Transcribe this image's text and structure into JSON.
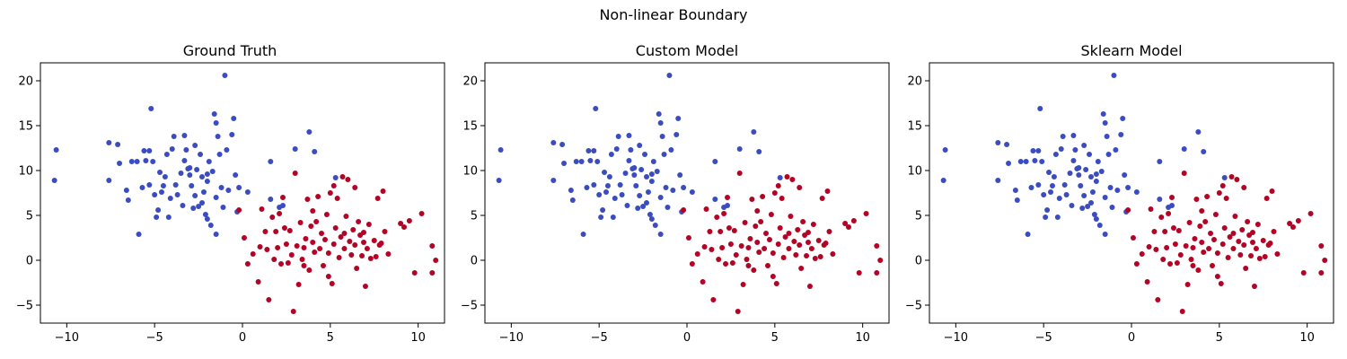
{
  "suptitle": "Non-linear Boundary",
  "colors": {
    "class_0": "#3b4cc0",
    "class_1": "#b40426"
  },
  "chart_data": [
    {
      "type": "scatter",
      "title": "Ground Truth",
      "xlim": [
        -11.5,
        11.5
      ],
      "ylim": [
        -7,
        22
      ],
      "xticks": [
        -10,
        -5,
        0,
        5,
        10
      ],
      "yticks": [
        -5,
        0,
        5,
        10,
        15,
        20
      ],
      "xlabel": "",
      "ylabel": "",
      "series": [
        {
          "class": 0,
          "points": [
            [
              -10.6,
              12.3
            ],
            [
              -10.7,
              8.9
            ],
            [
              -7.6,
              13.1
            ],
            [
              -7.6,
              8.9
            ],
            [
              -7.1,
              12.9
            ],
            [
              -7.0,
              10.8
            ],
            [
              -6.6,
              7.8
            ],
            [
              -6.5,
              6.7
            ],
            [
              -6.3,
              11.0
            ],
            [
              -6.0,
              11.0
            ],
            [
              -5.9,
              2.9
            ],
            [
              -5.7,
              8.1
            ],
            [
              -5.6,
              12.2
            ],
            [
              -5.5,
              11.1
            ],
            [
              -5.3,
              12.2
            ],
            [
              -5.3,
              8.4
            ],
            [
              -5.2,
              16.9
            ],
            [
              -5.1,
              11.0
            ],
            [
              -5.0,
              7.3
            ],
            [
              -4.7,
              9.8
            ],
            [
              -4.6,
              7.6
            ],
            [
              -4.5,
              8.3
            ],
            [
              -4.3,
              11.8
            ],
            [
              -4.2,
              4.8
            ],
            [
              -4.0,
              12.4
            ],
            [
              -3.9,
              13.8
            ],
            [
              -3.7,
              7.3
            ],
            [
              -3.5,
              9.7
            ],
            [
              -3.3,
              11.1
            ],
            [
              -3.2,
              12.3
            ],
            [
              -3.1,
              10.2
            ],
            [
              -3.0,
              9.5
            ],
            [
              -2.9,
              8.3
            ],
            [
              -2.7,
              12.8
            ],
            [
              -2.6,
              10.1
            ],
            [
              -2.5,
              6.0
            ],
            [
              -2.4,
              11.8
            ],
            [
              -2.3,
              9.3
            ],
            [
              -2.2,
              7.6
            ],
            [
              -2.1,
              5.1
            ],
            [
              -2.0,
              4.6
            ],
            [
              -1.9,
              11.0
            ],
            [
              -1.7,
              9.9
            ],
            [
              -1.6,
              16.3
            ],
            [
              -1.5,
              15.3
            ],
            [
              -1.4,
              13.8
            ],
            [
              -1.3,
              11.8
            ],
            [
              -1.2,
              8.1
            ],
            [
              -1.0,
              20.6
            ],
            [
              -0.8,
              7.8
            ],
            [
              -0.6,
              14.0
            ],
            [
              -0.5,
              15.8
            ],
            [
              -0.4,
              9.5
            ],
            [
              -0.2,
              8.1
            ],
            [
              0.3,
              7.6
            ],
            [
              1.6,
              11.0
            ],
            [
              1.6,
              6.8
            ],
            [
              2.1,
              5.9
            ],
            [
              2.3,
              6.1
            ],
            [
              3.0,
              12.4
            ],
            [
              3.8,
              14.3
            ],
            [
              4.1,
              12.1
            ],
            [
              5.3,
              9.2
            ],
            [
              -4.4,
              9.3
            ],
            [
              -4.9,
              4.8
            ],
            [
              -4.8,
              5.6
            ],
            [
              -3.4,
              6.1
            ],
            [
              -2.8,
              5.8
            ],
            [
              -2.3,
              6.4
            ],
            [
              -1.8,
              3.9
            ],
            [
              -1.5,
              2.9
            ],
            [
              -2.7,
              7.2
            ],
            [
              -3.8,
              8.4
            ],
            [
              -4.1,
              6.9
            ],
            [
              -3.0,
              10.3
            ],
            [
              -2.0,
              8.8
            ],
            [
              -1.1,
              5.9
            ],
            [
              -0.9,
              12.3
            ],
            [
              -0.3,
              5.4
            ],
            [
              -1.5,
              7.0
            ],
            [
              -2.0,
              9.6
            ],
            [
              -3.3,
              13.9
            ]
          ]
        },
        {
          "class": 1,
          "points": [
            [
              -0.2,
              5.6
            ],
            [
              0.1,
              2.5
            ],
            [
              0.3,
              -0.4
            ],
            [
              0.6,
              0.7
            ],
            [
              0.9,
              -2.4
            ],
            [
              1.0,
              1.5
            ],
            [
              1.1,
              5.7
            ],
            [
              1.3,
              3.2
            ],
            [
              1.4,
              1.2
            ],
            [
              1.5,
              -4.4
            ],
            [
              1.7,
              4.8
            ],
            [
              1.8,
              0.1
            ],
            [
              1.9,
              3.2
            ],
            [
              2.0,
              1.4
            ],
            [
              2.1,
              5.2
            ],
            [
              2.2,
              -0.4
            ],
            [
              2.4,
              3.6
            ],
            [
              2.5,
              1.8
            ],
            [
              2.6,
              -0.3
            ],
            [
              2.7,
              3.3
            ],
            [
              2.8,
              0.6
            ],
            [
              2.9,
              -5.7
            ],
            [
              3.0,
              9.7
            ],
            [
              3.1,
              1.6
            ],
            [
              3.2,
              -2.7
            ],
            [
              3.3,
              4.2
            ],
            [
              3.4,
              0.1
            ],
            [
              3.5,
              1.4
            ],
            [
              3.6,
              2.4
            ],
            [
              3.7,
              6.8
            ],
            [
              3.8,
              -1.1
            ],
            [
              3.9,
              3.8
            ],
            [
              4.0,
              2.0
            ],
            [
              4.1,
              0.9
            ],
            [
              4.2,
              4.3
            ],
            [
              4.3,
              7.1
            ],
            [
              4.4,
              1.3
            ],
            [
              4.5,
              3.0
            ],
            [
              4.6,
              -0.6
            ],
            [
              4.7,
              2.3
            ],
            [
              4.8,
              5.1
            ],
            [
              4.9,
              0.8
            ],
            [
              5.0,
              7.5
            ],
            [
              5.1,
              -2.6
            ],
            [
              5.2,
              1.8
            ],
            [
              5.3,
              3.6
            ],
            [
              5.4,
              6.9
            ],
            [
              5.5,
              0.3
            ],
            [
              5.6,
              2.6
            ],
            [
              5.7,
              9.3
            ],
            [
              5.8,
              1.3
            ],
            [
              5.9,
              4.9
            ],
            [
              6.0,
              9.0
            ],
            [
              6.1,
              2.1
            ],
            [
              6.2,
              0.6
            ],
            [
              6.3,
              3.4
            ],
            [
              6.4,
              1.7
            ],
            [
              6.5,
              -0.9
            ],
            [
              6.6,
              4.3
            ],
            [
              6.7,
              2.8
            ],
            [
              6.8,
              0.5
            ],
            [
              6.9,
              3.1
            ],
            [
              7.0,
              -2.9
            ],
            [
              7.1,
              1.3
            ],
            [
              7.2,
              4.0
            ],
            [
              7.3,
              0.2
            ],
            [
              7.5,
              2.2
            ],
            [
              7.6,
              0.4
            ],
            [
              7.7,
              6.9
            ],
            [
              7.8,
              1.7
            ],
            [
              8.0,
              7.7
            ],
            [
              8.1,
              3.2
            ],
            [
              8.3,
              0.7
            ],
            [
              9.2,
              3.7
            ],
            [
              9.5,
              4.4
            ],
            [
              9.8,
              -1.4
            ],
            [
              10.2,
              5.2
            ],
            [
              10.8,
              1.6
            ],
            [
              10.8,
              -1.4
            ],
            [
              11.0,
              0.0
            ],
            [
              6.4,
              8.1
            ],
            [
              4.0,
              5.5
            ],
            [
              3.5,
              -0.6
            ],
            [
              2.3,
              7.0
            ],
            [
              5.8,
              3.0
            ],
            [
              7.9,
              1.9
            ],
            [
              4.9,
              -1.8
            ],
            [
              5.2,
              8.3
            ],
            [
              6.9,
              2.0
            ],
            [
              9.0,
              4.1
            ]
          ]
        }
      ]
    },
    {
      "type": "scatter",
      "title": "Custom Model",
      "xlim": [
        -11.5,
        11.5
      ],
      "ylim": [
        -7,
        22
      ],
      "xticks": [
        -10,
        -5,
        0,
        5,
        10
      ],
      "yticks": [
        -5,
        0,
        5,
        10,
        15,
        20
      ],
      "xlabel": "",
      "ylabel": "",
      "same_points_as": "Ground Truth"
    },
    {
      "type": "scatter",
      "title": "Sklearn Model",
      "xlim": [
        -11.5,
        11.5
      ],
      "ylim": [
        -7,
        22
      ],
      "xticks": [
        -10,
        -5,
        0,
        5,
        10
      ],
      "yticks": [
        -5,
        0,
        5,
        10,
        15,
        20
      ],
      "xlabel": "",
      "ylabel": "",
      "same_points_as": "Ground Truth"
    }
  ]
}
